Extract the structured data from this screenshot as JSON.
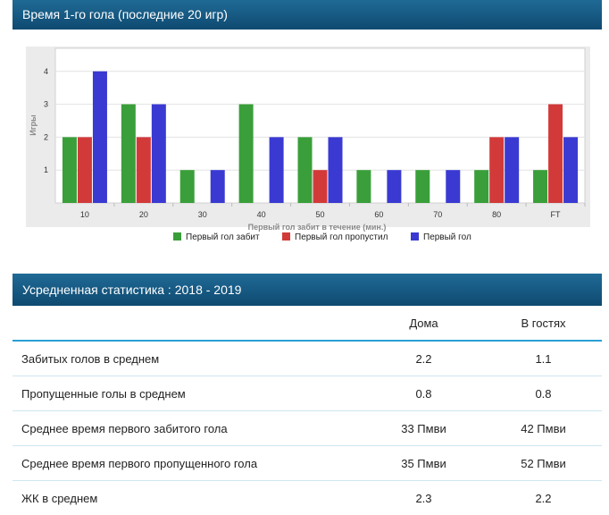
{
  "section1": {
    "title": "Время 1-го гола (последние 20 игр)"
  },
  "chart_data": {
    "type": "bar",
    "title": "",
    "xlabel": "Первый гол забит в течение (мин.)",
    "ylabel": "Игры",
    "categories": [
      "10",
      "20",
      "30",
      "40",
      "50",
      "60",
      "70",
      "80",
      "FT"
    ],
    "yticks": [
      1,
      2,
      3,
      4
    ],
    "ylim": [
      0,
      4.7
    ],
    "legend_position": "bottom",
    "series": [
      {
        "name": "Первый гол забит",
        "color": "#3a9f3a",
        "values": [
          2,
          3,
          1,
          3,
          2,
          1,
          1,
          1,
          1
        ]
      },
      {
        "name": "Первый гол пропустил",
        "color": "#d23a3a",
        "values": [
          2,
          2,
          0,
          0,
          1,
          0,
          0,
          2,
          3
        ]
      },
      {
        "name": "Первый гол",
        "color": "#3a3ad2",
        "values": [
          4,
          3,
          1,
          2,
          2,
          1,
          1,
          2,
          2
        ]
      }
    ]
  },
  "section2": {
    "title": "Усредненная статистика : 2018 - 2019"
  },
  "stats": {
    "headers": [
      "",
      "Дома",
      "В гостях"
    ],
    "rows": [
      {
        "label": "Забитых голов в среднем",
        "home": "2.2",
        "away": "1.1"
      },
      {
        "label": "Пропущенные голы в среднем",
        "home": "0.8",
        "away": "0.8"
      },
      {
        "label": "Среднее время первого забитого гола",
        "home": "33 Пмви",
        "away": "42 Пмви"
      },
      {
        "label": "Среднее время первого пропущенного гола",
        "home": "35 Пмви",
        "away": "52 Пмви"
      },
      {
        "label": "ЖК в среднем",
        "home": "2.3",
        "away": "2.2"
      }
    ]
  }
}
